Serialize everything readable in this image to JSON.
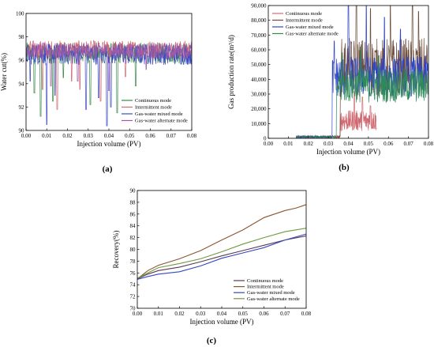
{
  "chart_data": [
    {
      "type": "line",
      "panel_label": "(a)",
      "xlabel": "Injection volume (PV)",
      "ylabel": "Water cut(%)",
      "xlim": [
        0.0,
        0.08
      ],
      "ylim": [
        90,
        100
      ],
      "xticks": [
        "0.00",
        "0.01",
        "0.02",
        "0.03",
        "0.04",
        "0.05",
        "0.06",
        "0.07",
        "0.08"
      ],
      "yticks": [
        "90",
        "92",
        "94",
        "96",
        "98",
        "100"
      ],
      "legend_position": "lower-right",
      "series": [
        {
          "name": "Continuous mode",
          "color": "#3a8a4a",
          "base": 96.6,
          "noise": 0.9,
          "x_end": 0.08,
          "dips": [
            [
              0.004,
              93.2
            ],
            [
              0.007,
              91.2
            ],
            [
              0.013,
              92.5
            ],
            [
              0.018,
              94.5
            ],
            [
              0.031,
              92.2
            ],
            [
              0.044,
              91.5
            ],
            [
              0.053,
              93.8
            ]
          ]
        },
        {
          "name": "Intermittent mode",
          "color": "#d06a72",
          "base": 96.9,
          "noise": 0.8,
          "x_end": 0.08,
          "dips": [
            [
              0.008,
              93.5
            ],
            [
              0.015,
              91.8
            ],
            [
              0.022,
              94.2
            ],
            [
              0.026,
              93.5
            ],
            [
              0.036,
              92.5
            ],
            [
              0.048,
              94.6
            ]
          ]
        },
        {
          "name": "Gas-water mixed mode",
          "color": "#3d4ec4",
          "base": 96.5,
          "noise": 0.9,
          "x_end": 0.08,
          "dips": [
            [
              0.002,
              94.2
            ],
            [
              0.01,
              90.5
            ],
            [
              0.014,
              93.0
            ],
            [
              0.029,
              91.8
            ],
            [
              0.035,
              92.8
            ],
            [
              0.039,
              90.4
            ],
            [
              0.041,
              92.0
            ]
          ]
        },
        {
          "name": "Gas-water alternate mode",
          "color": "#a05aa8",
          "base": 96.8,
          "noise": 0.7,
          "x_end": 0.08,
          "dips": [
            [
              0.012,
              93.8
            ],
            [
              0.025,
              94.2
            ],
            [
              0.04,
              93.4
            ],
            [
              0.058,
              95.2
            ]
          ]
        }
      ]
    },
    {
      "type": "line",
      "panel_label": "(b)",
      "xlabel": "Injection volume (PV)",
      "ylabel": "Gas production rate(m³/d)",
      "xlim": [
        0.0,
        0.08
      ],
      "ylim": [
        0,
        90000
      ],
      "xticks": [
        "0.00",
        "0.01",
        "0.02",
        "0.03",
        "0.04",
        "0.05",
        "0.06",
        "0.07",
        "0.08"
      ],
      "yticks": [
        "0",
        "10,000",
        "20,000",
        "30,000",
        "40,000",
        "50,000",
        "60,000",
        "70,000",
        "80,000",
        "90,000"
      ],
      "legend_position": "top-left",
      "series": [
        {
          "name": "Continuous mode",
          "color": "#d06a72",
          "onset": 0.036,
          "x_end": 0.054,
          "level": 12000,
          "spread": 7000,
          "spikes": [
            [
              0.043,
              32000
            ],
            [
              0.047,
              28000
            ],
            [
              0.051,
              22000
            ]
          ]
        },
        {
          "name": "Intermittent mode",
          "color": "#6b4b3a",
          "onset": 0.036,
          "x_end": 0.08,
          "level": 48000,
          "spread": 20000,
          "spikes": [
            [
              0.044,
              90000
            ],
            [
              0.051,
              88000
            ],
            [
              0.061,
              90000
            ],
            [
              0.072,
              90000
            ],
            [
              0.075,
              86000
            ]
          ]
        },
        {
          "name": "Gas-water mixed mode",
          "color": "#2f45c8",
          "onset": 0.032,
          "x_end": 0.08,
          "level": 42000,
          "spread": 14000,
          "spikes": [
            [
              0.033,
              66000
            ],
            [
              0.04,
              90000
            ],
            [
              0.049,
              90000
            ],
            [
              0.058,
              82000
            ],
            [
              0.066,
              74000
            ]
          ]
        },
        {
          "name": "Gas-water alternate mode",
          "color": "#2f8a5a",
          "onset": 0.034,
          "x_end": 0.08,
          "level": 36000,
          "spread": 12000,
          "spikes": [
            [
              0.037,
              58000
            ],
            [
              0.046,
              62000
            ],
            [
              0.055,
              56000
            ]
          ]
        }
      ]
    },
    {
      "type": "line",
      "panel_label": "(c)",
      "xlabel": "Injection volume (PV)",
      "ylabel": "Recovery(%)",
      "xlim": [
        0.0,
        0.08
      ],
      "ylim": [
        70,
        90
      ],
      "xticks": [
        "0.00",
        "0.01",
        "0.02",
        "0.03",
        "0.04",
        "0.05",
        "0.06",
        "0.07",
        "0.08"
      ],
      "yticks": [
        "70",
        "72",
        "74",
        "76",
        "78",
        "80",
        "82",
        "84",
        "86",
        "88",
        "90"
      ],
      "legend_position": "lower-right",
      "series": [
        {
          "name": "Continuous mode",
          "color": "#5a3a55",
          "x": [
            0.0,
            0.005,
            0.01,
            0.02,
            0.03,
            0.04,
            0.05,
            0.06,
            0.07,
            0.08
          ],
          "y": [
            75.0,
            75.8,
            76.4,
            77.0,
            77.9,
            78.9,
            79.8,
            80.7,
            81.6,
            82.3
          ]
        },
        {
          "name": "Intermittent mode",
          "color": "#8a5530",
          "x": [
            0.0,
            0.005,
            0.01,
            0.02,
            0.03,
            0.04,
            0.05,
            0.06,
            0.065,
            0.07,
            0.075,
            0.08
          ],
          "y": [
            75.0,
            76.4,
            77.3,
            78.4,
            79.8,
            81.6,
            83.3,
            85.4,
            86.0,
            86.6,
            87.0,
            87.6
          ]
        },
        {
          "name": "Gas-water mixed mode",
          "color": "#3348c0",
          "x": [
            0.0,
            0.005,
            0.01,
            0.02,
            0.03,
            0.04,
            0.05,
            0.06,
            0.07,
            0.08
          ],
          "y": [
            74.9,
            75.4,
            75.8,
            76.2,
            77.2,
            78.5,
            79.4,
            80.3,
            81.6,
            82.6
          ]
        },
        {
          "name": "Gas-water alternate mode",
          "color": "#6e9a3e",
          "x": [
            0.0,
            0.005,
            0.01,
            0.02,
            0.03,
            0.04,
            0.05,
            0.06,
            0.07,
            0.08
          ],
          "y": [
            75.1,
            76.0,
            76.9,
            77.6,
            78.4,
            79.6,
            80.9,
            82.0,
            83.0,
            83.6
          ]
        }
      ]
    }
  ]
}
